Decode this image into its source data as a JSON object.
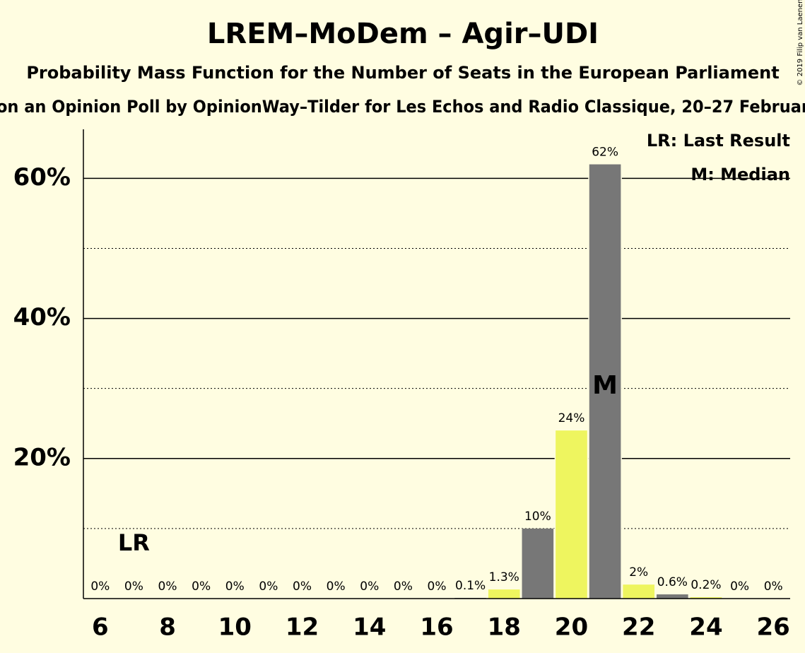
{
  "chart_data": {
    "type": "bar",
    "title": "LREM–MoDem – Agir–UDI",
    "subtitle": "Probability Mass Function for the Number of Seats in the European Parliament",
    "subtitle2": "on an Opinion Poll by OpinionWay–Tilder for Les Echos and Radio Classique, 20–27 Februar",
    "copyright": "© 2019 Filip van Laenen",
    "x": [
      6,
      7,
      8,
      9,
      10,
      11,
      12,
      13,
      14,
      15,
      16,
      17,
      18,
      19,
      20,
      21,
      22,
      23,
      24,
      25,
      26
    ],
    "values": [
      0,
      0,
      0,
      0,
      0,
      0,
      0,
      0,
      0,
      0,
      0,
      0.1,
      1.3,
      10,
      24,
      62,
      2,
      0.6,
      0.2,
      0,
      0
    ],
    "value_labels": [
      "0%",
      "0%",
      "0%",
      "0%",
      "0%",
      "0%",
      "0%",
      "0%",
      "0%",
      "0%",
      "0%",
      "0.1%",
      "1.3%",
      "10%",
      "24%",
      "62%",
      "2%",
      "0.6%",
      "0.2%",
      "0%",
      "0%"
    ],
    "colors": [
      "#eef55f",
      "#777777"
    ],
    "xlim": [
      5.5,
      26.5
    ],
    "xticks": [
      6,
      8,
      10,
      12,
      14,
      16,
      18,
      20,
      22,
      24,
      26
    ],
    "ylim": [
      0,
      67
    ],
    "yticks": [
      {
        "value": 20,
        "label": "20%"
      },
      {
        "value": 40,
        "label": "40%"
      },
      {
        "value": 60,
        "label": "60%"
      }
    ],
    "minor_yticks": [
      10,
      30,
      50
    ],
    "grid": true,
    "last_result": {
      "x": 7,
      "label": "LR"
    },
    "median": {
      "x": 21,
      "label": "M"
    },
    "legend": [
      "LR: Last Result",
      "M: Median"
    ]
  }
}
